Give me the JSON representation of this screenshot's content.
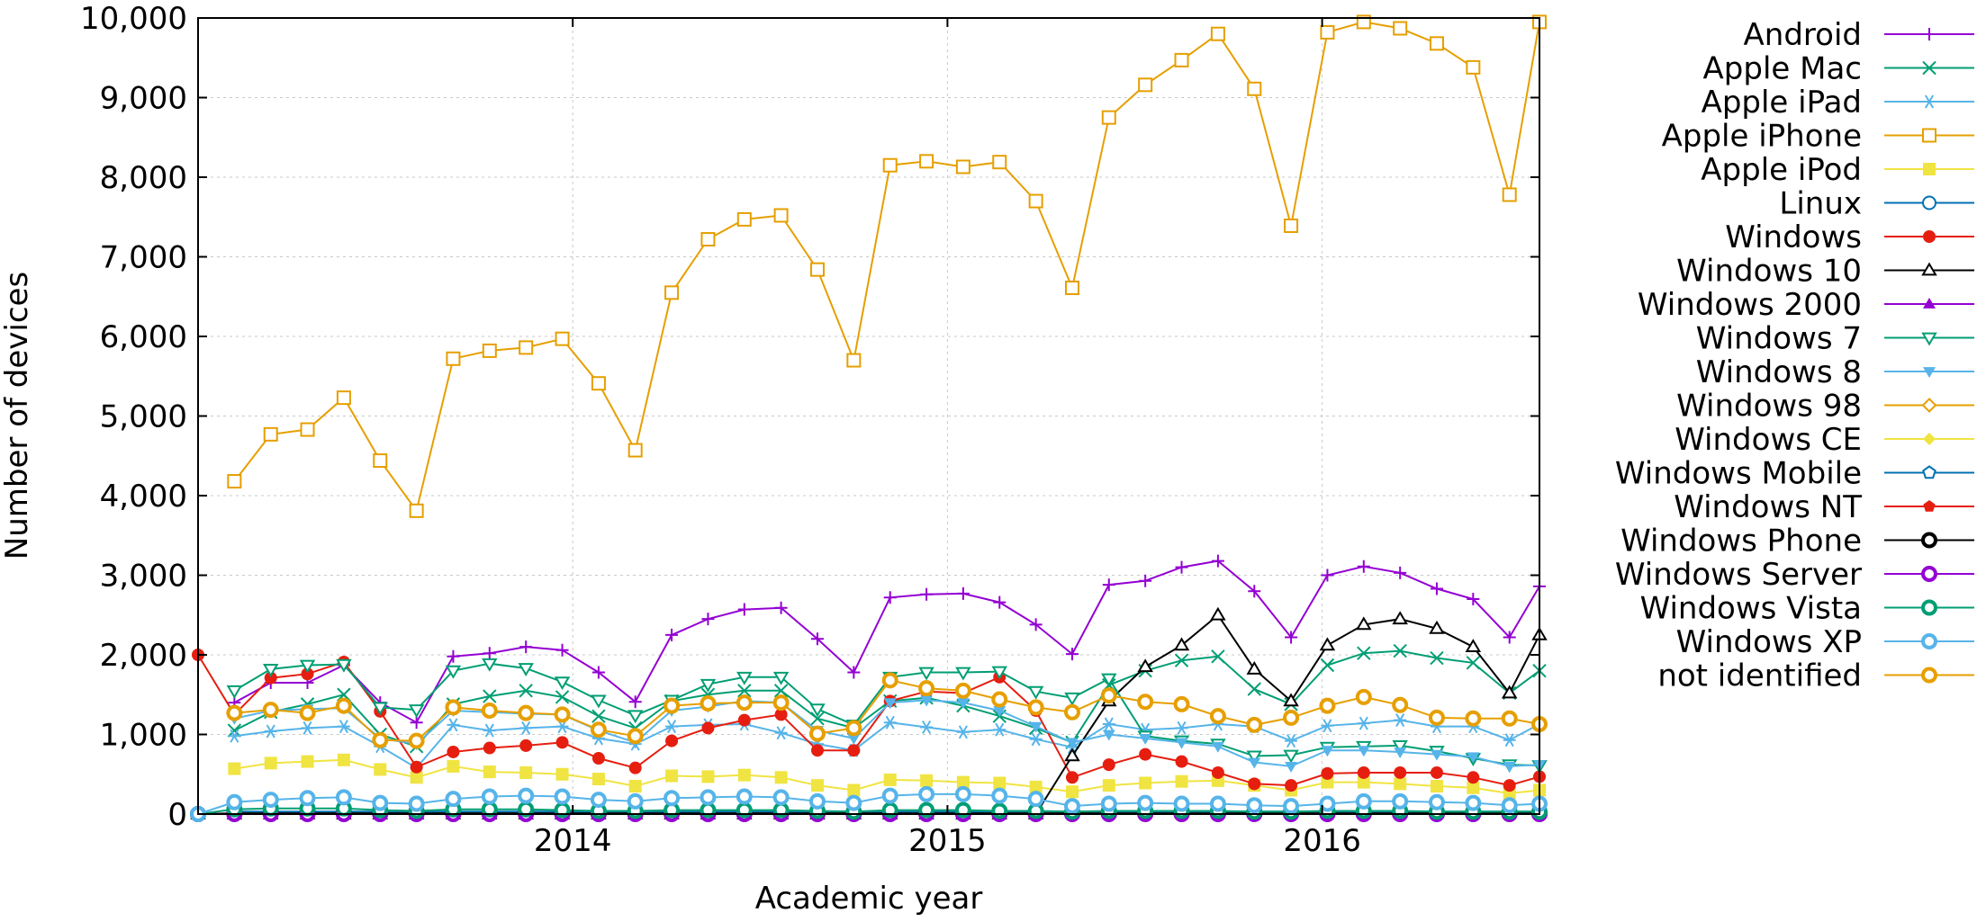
{
  "chart_data": {
    "type": "line",
    "title": "",
    "xlabel": "Academic year",
    "ylabel": "Number of devices",
    "ylim": [
      0,
      10000
    ],
    "xlim": [
      2013.0,
      2016.58
    ],
    "x_ticks": [
      2014,
      2015,
      2016
    ],
    "x_tick_labels": [
      "2014",
      "2015",
      "2016"
    ],
    "y_ticks": [
      0,
      1000,
      2000,
      3000,
      4000,
      5000,
      6000,
      7000,
      8000,
      9000,
      10000
    ],
    "y_tick_labels": [
      "0",
      "1,000",
      "2,000",
      "3,000",
      "4,000",
      "5,000",
      "6,000",
      "7,000",
      "8,000",
      "9,000",
      "10,000"
    ],
    "grid": true,
    "legend_position": "right",
    "x": [
      2013.0,
      2013.097,
      2013.194,
      2013.292,
      2013.389,
      2013.486,
      2013.583,
      2013.681,
      2013.778,
      2013.875,
      2013.972,
      2014.069,
      2014.167,
      2014.264,
      2014.361,
      2014.458,
      2014.556,
      2014.653,
      2014.75,
      2014.847,
      2014.944,
      2015.042,
      2015.139,
      2015.236,
      2015.333,
      2015.431,
      2015.528,
      2015.625,
      2015.722,
      2015.819,
      2015.917,
      2016.014,
      2016.111,
      2016.208,
      2016.306,
      2016.403,
      2016.5,
      2016.58
    ],
    "series": [
      {
        "name": "Android",
        "color": "#9400d3",
        "marker": "plus",
        "values": [
          null,
          1400,
          1650,
          1650,
          1870,
          1400,
          1150,
          1980,
          2020,
          2100,
          2060,
          1780,
          1410,
          2250,
          2450,
          2570,
          2590,
          2200,
          1780,
          2720,
          2760,
          2770,
          2660,
          2380,
          2010,
          2880,
          2930,
          3100,
          3180,
          2800,
          2220,
          3000,
          3110,
          3030,
          2830,
          2700,
          2220,
          2860
        ]
      },
      {
        "name": "Apple Mac",
        "color": "#009e73",
        "marker": "cross",
        "values": [
          null,
          1050,
          1280,
          1380,
          1500,
          1000,
          850,
          1380,
          1480,
          1550,
          1470,
          1230,
          1080,
          1420,
          1500,
          1550,
          1550,
          1200,
          1080,
          1420,
          1460,
          1360,
          1230,
          1080,
          900,
          1620,
          1800,
          1930,
          1980,
          1570,
          1380,
          1870,
          2020,
          2050,
          1960,
          1900,
          1520,
          1800
        ]
      },
      {
        "name": "Apple iPad",
        "color": "#56b4e9",
        "marker": "asterisk",
        "values": [
          null,
          980,
          1040,
          1080,
          1100,
          850,
          580,
          1120,
          1050,
          1080,
          1100,
          950,
          880,
          1100,
          1120,
          1130,
          1020,
          880,
          800,
          1150,
          1090,
          1030,
          1060,
          940,
          840,
          1130,
          1060,
          1080,
          1130,
          1100,
          920,
          1110,
          1140,
          1180,
          1100,
          1100,
          930,
          1130
        ]
      },
      {
        "name": "Apple iPhone",
        "color": "#e69f00",
        "marker": "box",
        "values": [
          null,
          4180,
          4770,
          4830,
          5230,
          4440,
          3810,
          5720,
          5820,
          5860,
          5970,
          5410,
          4570,
          6550,
          7220,
          7470,
          7520,
          6840,
          5700,
          8150,
          8200,
          8130,
          8190,
          7700,
          6610,
          8750,
          9160,
          9470,
          9800,
          9110,
          7390,
          9820,
          9950,
          9870,
          9680,
          9380,
          7780,
          9950
        ]
      },
      {
        "name": "Apple iPod",
        "color": "#f0e442",
        "marker": "square",
        "values": [
          null,
          570,
          640,
          660,
          680,
          560,
          460,
          600,
          530,
          520,
          500,
          440,
          350,
          480,
          470,
          490,
          460,
          360,
          300,
          430,
          420,
          400,
          390,
          340,
          280,
          360,
          390,
          410,
          420,
          360,
          300,
          400,
          400,
          380,
          350,
          330,
          260,
          300
        ]
      },
      {
        "name": "Linux",
        "color": "#0072b2",
        "marker": "circle",
        "values": [
          null,
          30,
          30,
          30,
          30,
          30,
          30,
          30,
          30,
          30,
          30,
          30,
          30,
          30,
          30,
          30,
          30,
          30,
          30,
          30,
          30,
          30,
          30,
          30,
          30,
          30,
          30,
          30,
          30,
          30,
          30,
          30,
          30,
          30,
          30,
          30,
          30,
          30
        ]
      },
      {
        "name": "Windows",
        "color": "#e51e10",
        "marker": "circle-filled",
        "values": [
          2000,
          1250,
          1710,
          1760,
          1910,
          1290,
          590,
          780,
          830,
          860,
          900,
          700,
          580,
          920,
          1080,
          1180,
          1250,
          800,
          800,
          1420,
          1540,
          1520,
          1720,
          1300,
          460,
          620,
          750,
          660,
          520,
          380,
          360,
          510,
          520,
          520,
          520,
          460,
          360,
          470
        ]
      },
      {
        "name": "Windows 10",
        "color": "#000000",
        "marker": "triangle",
        "values": [
          0,
          0,
          0,
          0,
          0,
          0,
          0,
          0,
          0,
          0,
          0,
          0,
          0,
          0,
          0,
          0,
          0,
          0,
          0,
          0,
          0,
          0,
          0,
          0,
          730,
          1420,
          1850,
          2120,
          2500,
          1820,
          1420,
          2120,
          2380,
          2450,
          2330,
          2100,
          1520,
          2250
        ]
      },
      {
        "name": "Windows 2000",
        "color": "#9400d3",
        "marker": "triangle-filled",
        "values": [
          0,
          0,
          0,
          0,
          0,
          0,
          0,
          0,
          0,
          0,
          0,
          0,
          0,
          0,
          0,
          0,
          0,
          0,
          0,
          0,
          0,
          0,
          0,
          0,
          0,
          0,
          0,
          0,
          0,
          0,
          0,
          0,
          0,
          0,
          0,
          0,
          0,
          0
        ]
      },
      {
        "name": "Windows 7",
        "color": "#009e73",
        "marker": "triangle-down",
        "values": [
          null,
          1550,
          1820,
          1870,
          1880,
          1340,
          1310,
          1800,
          1890,
          1830,
          1660,
          1430,
          1240,
          1430,
          1630,
          1720,
          1720,
          1320,
          1120,
          1720,
          1780,
          1780,
          1790,
          1540,
          1460,
          1700,
          980,
          920,
          880,
          730,
          740,
          840,
          850,
          860,
          790,
          700,
          620,
          610
        ]
      },
      {
        "name": "Windows 8",
        "color": "#56b4e9",
        "marker": "triangle-down-filled",
        "values": [
          null,
          1200,
          1300,
          1320,
          1330,
          950,
          880,
          1300,
          1280,
          1260,
          1250,
          1050,
          900,
          1300,
          1350,
          1420,
          1400,
          1050,
          950,
          1400,
          1430,
          1400,
          1300,
          1100,
          900,
          1000,
          950,
          900,
          850,
          650,
          600,
          800,
          800,
          780,
          750,
          720,
          600,
          620
        ]
      },
      {
        "name": "Windows 98",
        "color": "#e69f00",
        "marker": "diamond",
        "values": [
          0,
          0,
          0,
          0,
          0,
          0,
          0,
          0,
          0,
          0,
          0,
          0,
          0,
          0,
          0,
          0,
          0,
          0,
          0,
          0,
          0,
          0,
          0,
          0,
          0,
          0,
          0,
          0,
          0,
          0,
          0,
          0,
          0,
          0,
          0,
          0,
          0,
          0
        ]
      },
      {
        "name": "Windows CE",
        "color": "#f0e442",
        "marker": "diamond-filled",
        "values": [
          0,
          0,
          0,
          0,
          0,
          0,
          0,
          0,
          0,
          0,
          0,
          0,
          0,
          0,
          0,
          0,
          0,
          0,
          0,
          0,
          0,
          0,
          0,
          0,
          0,
          0,
          0,
          0,
          0,
          0,
          0,
          0,
          0,
          0,
          0,
          0,
          0,
          0
        ]
      },
      {
        "name": "Windows Mobile",
        "color": "#0072b2",
        "marker": "pentagon",
        "values": [
          0,
          0,
          0,
          0,
          0,
          0,
          0,
          0,
          0,
          0,
          0,
          0,
          0,
          0,
          0,
          0,
          0,
          0,
          0,
          0,
          0,
          0,
          0,
          0,
          0,
          0,
          0,
          0,
          0,
          0,
          0,
          0,
          0,
          0,
          0,
          0,
          0,
          0
        ]
      },
      {
        "name": "Windows NT",
        "color": "#e51e10",
        "marker": "pentagon-filled",
        "values": [
          0,
          0,
          0,
          0,
          0,
          0,
          0,
          0,
          0,
          0,
          0,
          0,
          0,
          0,
          0,
          0,
          0,
          0,
          0,
          0,
          0,
          0,
          0,
          0,
          0,
          0,
          0,
          0,
          0,
          0,
          0,
          0,
          0,
          0,
          0,
          0,
          0,
          0
        ]
      },
      {
        "name": "Windows Phone",
        "color": "#000000",
        "marker": "ring",
        "values": [
          0,
          10,
          10,
          10,
          10,
          10,
          10,
          10,
          10,
          10,
          10,
          10,
          10,
          10,
          10,
          10,
          10,
          10,
          10,
          10,
          10,
          10,
          10,
          10,
          10,
          10,
          10,
          10,
          10,
          10,
          10,
          10,
          10,
          10,
          10,
          10,
          10,
          10
        ]
      },
      {
        "name": "Windows Server",
        "color": "#9400d3",
        "marker": "ring",
        "values": [
          0,
          0,
          0,
          0,
          0,
          0,
          0,
          0,
          0,
          0,
          0,
          0,
          0,
          0,
          0,
          0,
          0,
          0,
          0,
          0,
          0,
          0,
          0,
          0,
          0,
          0,
          0,
          0,
          0,
          0,
          0,
          0,
          0,
          0,
          0,
          0,
          0,
          0
        ]
      },
      {
        "name": "Windows Vista",
        "color": "#009e73",
        "marker": "ring",
        "values": [
          0,
          60,
          70,
          70,
          70,
          50,
          40,
          60,
          60,
          60,
          50,
          40,
          40,
          50,
          50,
          50,
          50,
          40,
          30,
          50,
          50,
          50,
          40,
          40,
          30,
          40,
          40,
          40,
          40,
          30,
          30,
          40,
          40,
          40,
          30,
          30,
          30,
          30
        ]
      },
      {
        "name": "Windows XP",
        "color": "#56b4e9",
        "marker": "ring",
        "values": [
          0,
          150,
          180,
          200,
          210,
          140,
          130,
          190,
          220,
          230,
          220,
          180,
          160,
          200,
          210,
          220,
          210,
          160,
          140,
          230,
          250,
          250,
          230,
          190,
          100,
          130,
          140,
          130,
          130,
          110,
          100,
          130,
          160,
          160,
          150,
          140,
          110,
          130
        ]
      },
      {
        "name": "not identified",
        "color": "#e69f00",
        "marker": "ring",
        "values": [
          null,
          1270,
          1310,
          1270,
          1360,
          930,
          920,
          1340,
          1300,
          1270,
          1250,
          1060,
          980,
          1360,
          1390,
          1400,
          1400,
          1010,
          1080,
          1680,
          1580,
          1550,
          1440,
          1340,
          1280,
          1490,
          1410,
          1380,
          1230,
          1120,
          1210,
          1360,
          1470,
          1370,
          1210,
          1200,
          1200,
          1130
        ]
      }
    ]
  }
}
